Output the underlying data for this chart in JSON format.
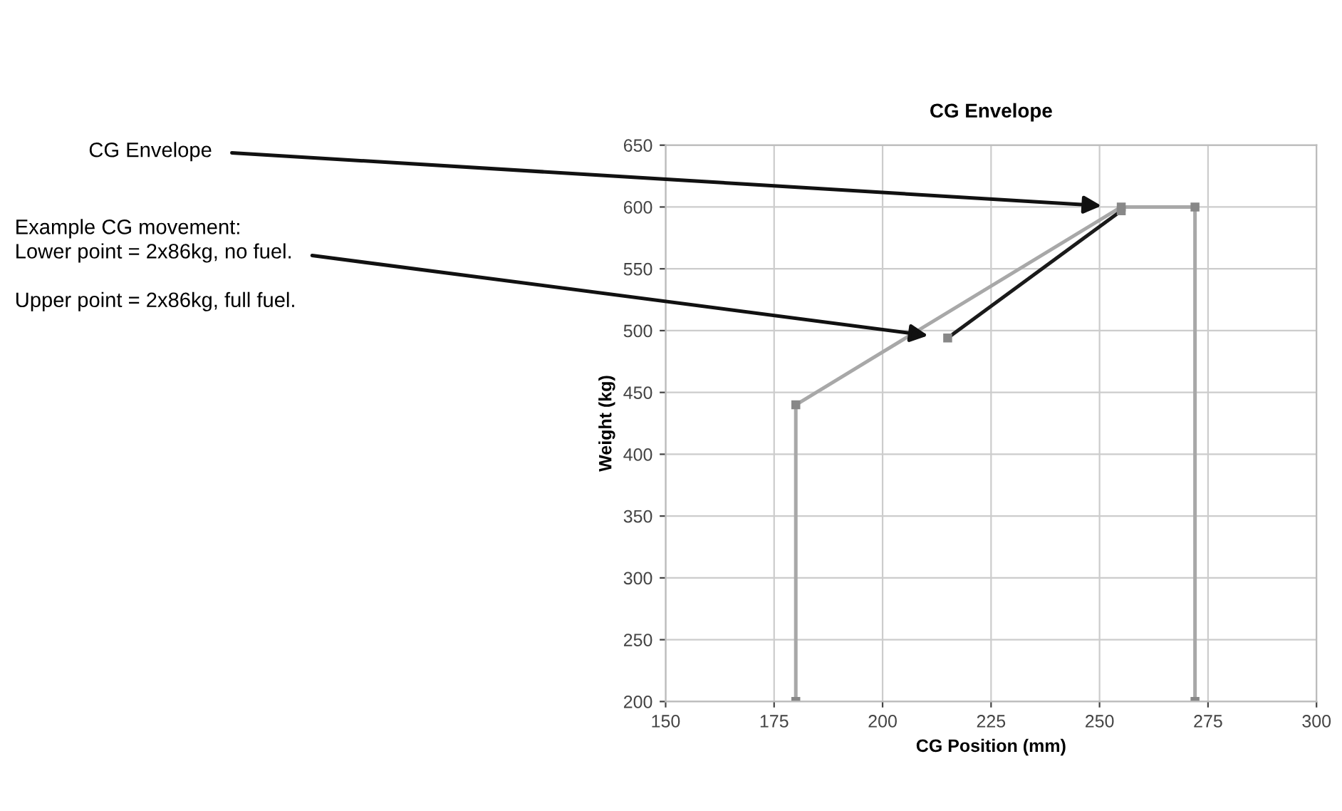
{
  "chart_data": {
    "type": "line",
    "title": "CG Envelope",
    "xlabel": "CG Position (mm)",
    "ylabel": "Weight (kg)",
    "series": [
      {
        "color": "#a8a8a8",
        "x": [
          180,
          180,
          255,
          272,
          272
        ],
        "values": [
          200,
          440,
          600,
          600,
          200
        ]
      },
      {
        "color": "#1a1a1a",
        "x": [
          215,
          255
        ],
        "values": [
          494,
          597
        ]
      }
    ],
    "annotations": [
      "CG Envelope",
      "Example CG movement:",
      "Lower point = 2x86kg, no fuel.",
      "Upper point = 2x86kg, full fuel."
    ],
    "xlim": [
      150,
      300
    ],
    "xticks": [
      150,
      175,
      200,
      225,
      250,
      275,
      300
    ],
    "ylim": [
      200,
      650
    ],
    "yticks": [
      200,
      250,
      300,
      350,
      400,
      450,
      500,
      550,
      600,
      650
    ],
    "grid": true,
    "marker": "square",
    "line_style": "solid",
    "legend": false
  }
}
